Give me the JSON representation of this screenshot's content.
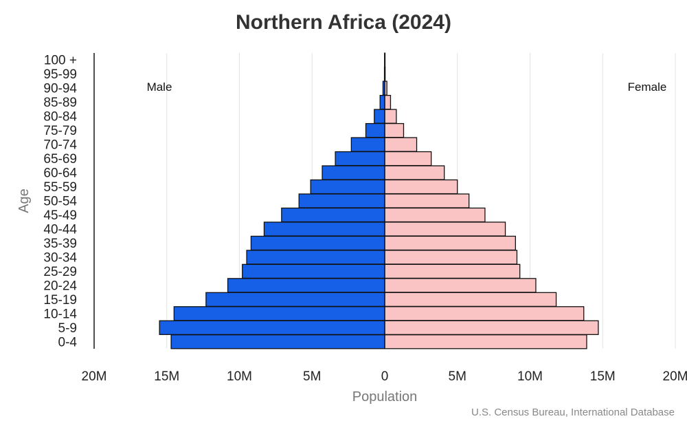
{
  "chart_data": {
    "type": "bar",
    "orientation": "horizontal-population-pyramid",
    "title": "Northern Africa (2024)",
    "xlabel": "Population",
    "ylabel": "Age",
    "xlim": [
      -20,
      20
    ],
    "x_unit": "millions",
    "x_ticks": [
      -20,
      -15,
      -10,
      -5,
      0,
      5,
      10,
      15,
      20
    ],
    "x_tick_labels": [
      "20M",
      "15M",
      "10M",
      "5M",
      "0",
      "5M",
      "10M",
      "15M",
      "20M"
    ],
    "categories": [
      "100 +",
      "95-99",
      "90-94",
      "85-89",
      "80-84",
      "75-79",
      "70-74",
      "65-69",
      "60-64",
      "55-59",
      "50-54",
      "45-49",
      "40-44",
      "35-39",
      "30-34",
      "25-29",
      "20-24",
      "15-19",
      "10-14",
      "5-9",
      "0-4"
    ],
    "series": [
      {
        "name": "Male",
        "color": "#1560e6",
        "values": [
          0.01,
          0.02,
          0.12,
          0.32,
          0.72,
          1.3,
          2.3,
          3.4,
          4.3,
          5.1,
          5.9,
          7.1,
          8.3,
          9.2,
          9.5,
          9.8,
          10.8,
          12.3,
          14.5,
          15.5,
          14.7
        ]
      },
      {
        "name": "Female",
        "color": "#fbc4c4",
        "values": [
          0.01,
          0.03,
          0.15,
          0.4,
          0.8,
          1.3,
          2.2,
          3.2,
          4.1,
          5.0,
          5.8,
          6.9,
          8.3,
          9.0,
          9.1,
          9.3,
          10.4,
          11.8,
          13.7,
          14.7,
          13.9
        ]
      }
    ],
    "legend": {
      "left": "Male",
      "right": "Female"
    },
    "grid": true,
    "source": "U.S. Census Bureau, International Database"
  }
}
